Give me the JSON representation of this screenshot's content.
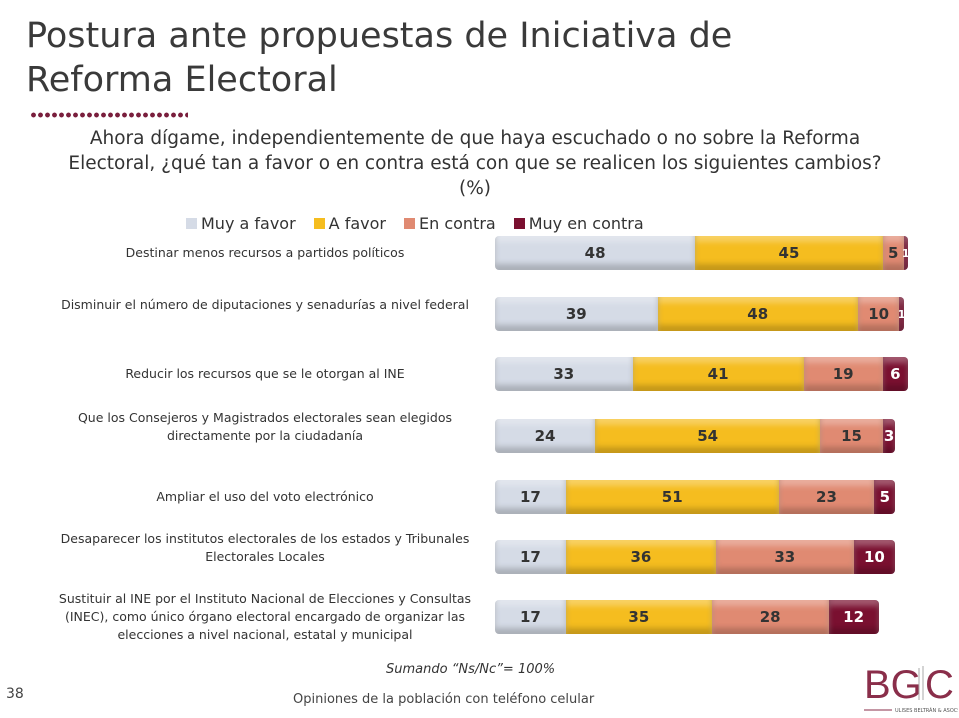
{
  "title": "Postura ante propuestas de Iniciativa de Reforma Electoral",
  "question": "Ahora dígame, independientemente de que haya escuchado o no sobre la Reforma Electoral, ¿qué tan a favor o en contra está con que se realicen los siguientes cambios? (%)",
  "note": "Sumando “Ns/Nc”= 100%",
  "page_number": "38",
  "footer": "Opiniones de la población con teléfono celular",
  "logo": {
    "text": "BGC",
    "subtitle": "ULISES BELTRÁN & ASOCS."
  },
  "chart_data": {
    "type": "bar",
    "orientation": "horizontal",
    "stacked": true,
    "title": "Ahora dígame, independientemente de que haya escuchado o no sobre la Reforma Electoral, ¿qué tan a favor o en contra está con que se realicen los siguientes cambios? (%)",
    "legend_position": "top",
    "categories": [
      "Destinar menos recursos a partidos políticos",
      "Disminuir el número de diputaciones y senadurías a nivel federal",
      "Reducir los recursos que se le otorgan al INE",
      "Que los Consejeros y Magistrados electorales sean elegidos directamente por la ciudadanía",
      "Ampliar el uso del voto electrónico",
      "Desaparecer los institutos electorales de los estados y Tribunales Electorales Locales",
      "Sustituir al INE por el Instituto Nacional de Elecciones y Consultas (INEC), como único órgano electoral encargado de organizar las elecciones a nivel nacional, estatal y municipal"
    ],
    "series": [
      {
        "name": "Muy a favor",
        "color": "#d5dbe6",
        "text_color": "#333333",
        "values": [
          48,
          39,
          33,
          24,
          17,
          17,
          17
        ]
      },
      {
        "name": "A favor",
        "color": "#f5bd1f",
        "text_color": "#333333",
        "values": [
          45,
          48,
          41,
          54,
          51,
          36,
          35
        ]
      },
      {
        "name": "En contra",
        "color": "#e08a72",
        "text_color": "#333333",
        "values": [
          5,
          10,
          19,
          15,
          23,
          33,
          28
        ]
      },
      {
        "name": "Muy en contra",
        "color": "#7a1030",
        "text_color": "#ffffff",
        "values": [
          1,
          1,
          6,
          3,
          5,
          10,
          12
        ]
      }
    ]
  }
}
